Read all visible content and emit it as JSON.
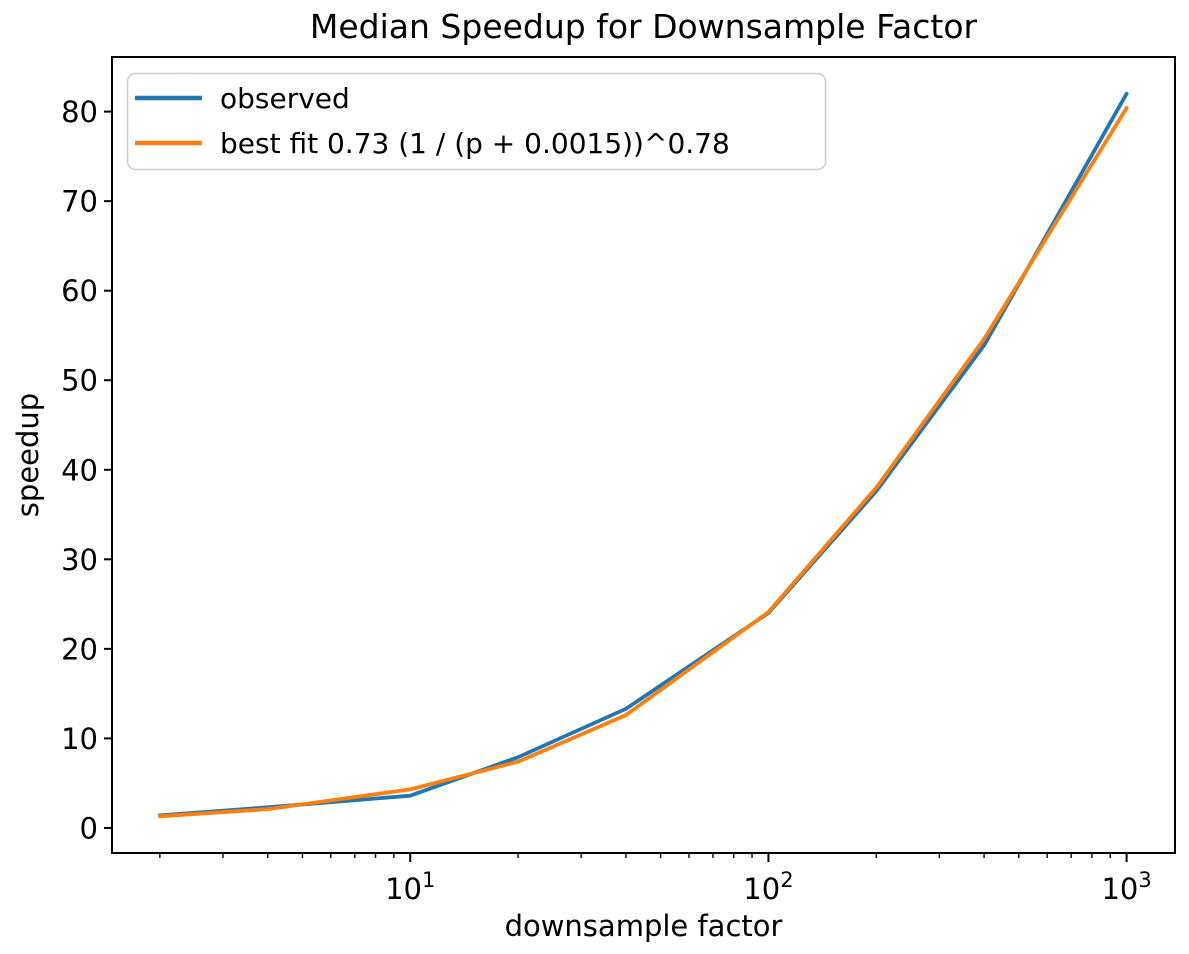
{
  "chart_data": {
    "type": "line",
    "title": "Median Speedup for Downsample Factor",
    "xlabel": "downsample factor",
    "ylabel": "speedup",
    "x_scale": "log",
    "y_scale": "linear",
    "x": [
      2,
      4,
      10,
      20,
      40,
      100,
      200,
      400,
      1000
    ],
    "series": [
      {
        "name": "observed",
        "color": "#1f77b4",
        "values": [
          1.4,
          2.3,
          3.6,
          7.9,
          13.3,
          24.0,
          37.6,
          53.9,
          82.0
        ]
      },
      {
        "name": "best fit 0.73 (1 / (p + 0.0015))^0.78",
        "color": "#ff7f0e",
        "values": [
          1.3,
          2.1,
          4.3,
          7.4,
          12.6,
          24.1,
          38.0,
          54.6,
          80.4
        ]
      }
    ],
    "xlim": [
      1.47,
      1365
    ],
    "ylim": [
      -2.8,
      86.1
    ],
    "y_ticks": [
      0,
      10,
      20,
      30,
      40,
      50,
      60,
      70,
      80
    ],
    "x_major_ticks": [
      10,
      100,
      1000
    ],
    "x_major_tick_exponents": [
      1,
      2,
      3
    ],
    "grid": false,
    "legend": {
      "position": "upper left",
      "entries": [
        "observed",
        "best fit 0.73 (1 / (p + 0.0015))^0.78"
      ]
    },
    "colors": {
      "background": "#ffffff",
      "axes": "#000000",
      "legend_border": "#cccccc"
    }
  }
}
